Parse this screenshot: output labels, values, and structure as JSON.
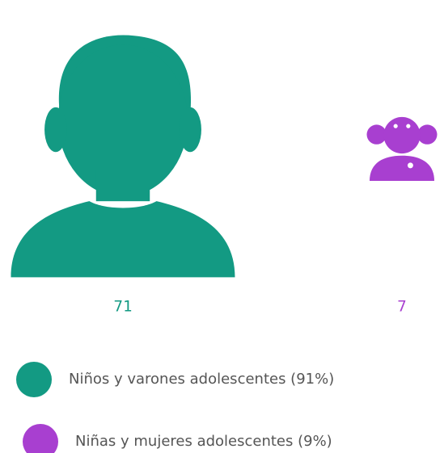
{
  "chart_data": {
    "type": "pictograph",
    "series": [
      {
        "name": "Niños y varones adolescentes (91%)",
        "color": "#139a83",
        "values": [
          71
        ]
      },
      {
        "name": "Niñas y mujeres adolescentes (9%)",
        "color": "#a83fd0",
        "values": [
          7
        ]
      }
    ]
  }
}
